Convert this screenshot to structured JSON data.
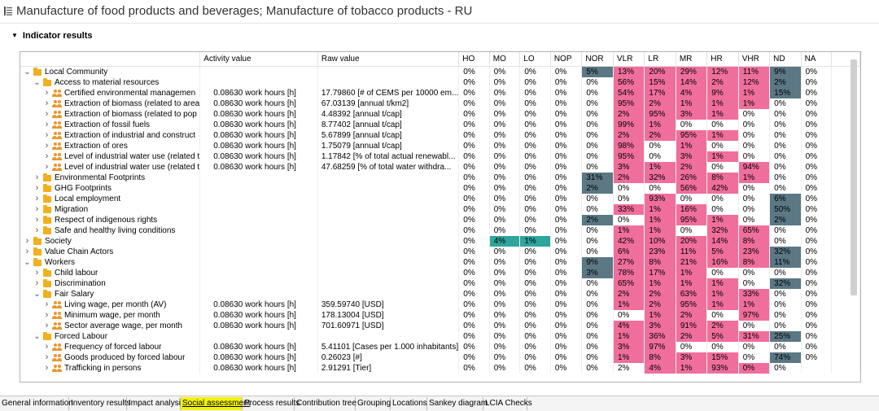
{
  "title": "Manufacture of food products and beverages; Manufacture of tobacco products - RU",
  "section": "Indicator results",
  "columns": [
    "",
    "Activity value",
    "Raw value",
    "HO",
    "MO",
    "LO",
    "NOP",
    "NOR",
    "VLR",
    "LR",
    "MR",
    "HR",
    "VHR",
    "ND",
    "NA"
  ],
  "rows": [
    {
      "level": 0,
      "icon": "folder",
      "expanded": true,
      "name": "Local Community",
      "activity": "",
      "raw": "",
      "v": [
        "0%",
        "0%",
        "0%",
        "0%",
        "5%",
        "13%",
        "20%",
        "29%",
        "12%",
        "11%",
        "9%",
        "0%"
      ],
      "hl": [
        "",
        "",
        "",
        "",
        "s",
        "p",
        "p",
        "p",
        "p",
        "p",
        "s",
        ""
      ]
    },
    {
      "level": 1,
      "icon": "folder",
      "expanded": true,
      "name": "Access to material resources",
      "activity": "",
      "raw": "",
      "v": [
        "0%",
        "0%",
        "0%",
        "0%",
        "0%",
        "56%",
        "15%",
        "14%",
        "2%",
        "12%",
        "2%",
        "0%"
      ],
      "hl": [
        "",
        "",
        "",
        "",
        "",
        "p",
        "p",
        "p",
        "p",
        "p",
        "s",
        ""
      ]
    },
    {
      "level": 2,
      "icon": "people",
      "expanded": false,
      "name": "Certified environmental managemen",
      "activity": "0.08630 work hours [h]",
      "raw": "17.79860 [# of CEMS per 10000 em...",
      "v": [
        "0%",
        "0%",
        "0%",
        "0%",
        "0%",
        "54%",
        "17%",
        "4%",
        "9%",
        "1%",
        "15%",
        "0%"
      ],
      "hl": [
        "",
        "",
        "",
        "",
        "",
        "p",
        "p",
        "p",
        "p",
        "p",
        "s",
        ""
      ]
    },
    {
      "level": 2,
      "icon": "people",
      "expanded": false,
      "name": "Extraction of biomass (related to area",
      "activity": "0.08630 work hours [h]",
      "raw": "67.03139 [annual t/km2]",
      "v": [
        "0%",
        "0%",
        "0%",
        "0%",
        "0%",
        "95%",
        "2%",
        "1%",
        "1%",
        "1%",
        "0%",
        "0%"
      ],
      "hl": [
        "",
        "",
        "",
        "",
        "",
        "p",
        "p",
        "p",
        "p",
        "p",
        "",
        ""
      ]
    },
    {
      "level": 2,
      "icon": "people",
      "expanded": false,
      "name": "Extraction of biomass (related to pop",
      "activity": "0.08630 work hours [h]",
      "raw": "4.48392 [annual t/cap]",
      "v": [
        "0%",
        "0%",
        "0%",
        "0%",
        "0%",
        "2%",
        "95%",
        "3%",
        "1%",
        "0%",
        "0%",
        "0%"
      ],
      "hl": [
        "",
        "",
        "",
        "",
        "",
        "p",
        "p",
        "p",
        "p",
        "",
        "",
        ""
      ]
    },
    {
      "level": 2,
      "icon": "people",
      "expanded": false,
      "name": "Extraction of fossil fuels",
      "activity": "0.08630 work hours [h]",
      "raw": "8.77402 [annual t/cap]",
      "v": [
        "0%",
        "0%",
        "0%",
        "0%",
        "0%",
        "99%",
        "1%",
        "0%",
        "0%",
        "0%",
        "0%",
        "0%"
      ],
      "hl": [
        "",
        "",
        "",
        "",
        "",
        "p",
        "p",
        "",
        "",
        "",
        "",
        ""
      ]
    },
    {
      "level": 2,
      "icon": "people",
      "expanded": false,
      "name": "Extraction of industrial and construct",
      "activity": "0.08630 work hours [h]",
      "raw": "5.67899 [annual t/cap]",
      "v": [
        "0%",
        "0%",
        "0%",
        "0%",
        "0%",
        "2%",
        "2%",
        "95%",
        "1%",
        "0%",
        "0%",
        "0%"
      ],
      "hl": [
        "",
        "",
        "",
        "",
        "",
        "p",
        "p",
        "p",
        "p",
        "",
        "",
        ""
      ]
    },
    {
      "level": 2,
      "icon": "people",
      "expanded": false,
      "name": "Extraction of ores",
      "activity": "0.08630 work hours [h]",
      "raw": "1.75079 [annual t/cap]",
      "v": [
        "0%",
        "0%",
        "0%",
        "0%",
        "0%",
        "98%",
        "0%",
        "1%",
        "0%",
        "0%",
        "0%",
        "0%"
      ],
      "hl": [
        "",
        "",
        "",
        "",
        "",
        "p",
        "",
        "p",
        "",
        "",
        "",
        ""
      ]
    },
    {
      "level": 2,
      "icon": "people",
      "expanded": false,
      "name": "Level of industrial water use (related t",
      "activity": "0.08630 work hours [h]",
      "raw": "1.17842 [% of total actual renewabl...",
      "v": [
        "0%",
        "0%",
        "0%",
        "0%",
        "0%",
        "95%",
        "0%",
        "3%",
        "1%",
        "0%",
        "0%",
        "0%"
      ],
      "hl": [
        "",
        "",
        "",
        "",
        "",
        "p",
        "",
        "p",
        "p",
        "",
        "",
        ""
      ]
    },
    {
      "level": 2,
      "icon": "people",
      "expanded": false,
      "name": "Level of industrial water use (related t",
      "activity": "0.08630 work hours [h]",
      "raw": "47.68259 [% of total water withdra...",
      "v": [
        "0%",
        "0%",
        "0%",
        "0%",
        "0%",
        "3%",
        "1%",
        "2%",
        "0%",
        "94%",
        "0%",
        "0%"
      ],
      "hl": [
        "",
        "",
        "",
        "",
        "",
        "p",
        "p",
        "p",
        "",
        "p",
        "",
        ""
      ]
    },
    {
      "level": 1,
      "icon": "folder",
      "expanded": false,
      "name": "Environmental Footprints",
      "activity": "",
      "raw": "",
      "v": [
        "0%",
        "0%",
        "0%",
        "0%",
        "31%",
        "2%",
        "32%",
        "26%",
        "8%",
        "1%",
        "0%",
        "0%"
      ],
      "hl": [
        "",
        "",
        "",
        "",
        "s",
        "p",
        "p",
        "p",
        "p",
        "p",
        "",
        ""
      ]
    },
    {
      "level": 1,
      "icon": "folder",
      "expanded": false,
      "name": "GHG Footprints",
      "activity": "",
      "raw": "",
      "v": [
        "0%",
        "0%",
        "0%",
        "0%",
        "2%",
        "0%",
        "0%",
        "56%",
        "42%",
        "0%",
        "0%",
        "0%"
      ],
      "hl": [
        "",
        "",
        "",
        "",
        "s",
        "",
        "",
        "p",
        "p",
        "",
        "",
        ""
      ]
    },
    {
      "level": 1,
      "icon": "folder",
      "expanded": false,
      "name": "Local employment",
      "activity": "",
      "raw": "",
      "v": [
        "0%",
        "0%",
        "0%",
        "0%",
        "0%",
        "0%",
        "93%",
        "0%",
        "0%",
        "0%",
        "6%",
        "0%"
      ],
      "hl": [
        "",
        "",
        "",
        "",
        "",
        "",
        "p",
        "",
        "",
        "",
        "s",
        ""
      ]
    },
    {
      "level": 1,
      "icon": "folder",
      "expanded": false,
      "name": "Migration",
      "activity": "",
      "raw": "",
      "v": [
        "0%",
        "0%",
        "0%",
        "0%",
        "0%",
        "33%",
        "1%",
        "16%",
        "0%",
        "0%",
        "50%",
        "0%"
      ],
      "hl": [
        "",
        "",
        "",
        "",
        "",
        "p",
        "p",
        "p",
        "",
        "",
        "s",
        ""
      ]
    },
    {
      "level": 1,
      "icon": "folder",
      "expanded": false,
      "name": "Respect of indigenous rights",
      "activity": "",
      "raw": "",
      "v": [
        "0%",
        "0%",
        "0%",
        "0%",
        "2%",
        "0%",
        "1%",
        "95%",
        "1%",
        "0%",
        "2%",
        "0%"
      ],
      "hl": [
        "",
        "",
        "",
        "",
        "s",
        "",
        "p",
        "p",
        "p",
        "",
        "s",
        ""
      ]
    },
    {
      "level": 1,
      "icon": "folder",
      "expanded": false,
      "name": "Safe and healthy living conditions",
      "activity": "",
      "raw": "",
      "v": [
        "0%",
        "0%",
        "0%",
        "0%",
        "0%",
        "1%",
        "1%",
        "0%",
        "32%",
        "65%",
        "0%",
        "0%"
      ],
      "hl": [
        "",
        "",
        "",
        "",
        "",
        "p",
        "p",
        "",
        "p",
        "p",
        "",
        ""
      ]
    },
    {
      "level": 0,
      "icon": "folder",
      "expanded": false,
      "name": "Society",
      "activity": "",
      "raw": "",
      "v": [
        "0%",
        "4%",
        "1%",
        "0%",
        "0%",
        "42%",
        "10%",
        "20%",
        "14%",
        "8%",
        "0%",
        "0%"
      ],
      "hl": [
        "",
        "t",
        "t",
        "",
        "",
        "p",
        "p",
        "p",
        "p",
        "p",
        "",
        ""
      ]
    },
    {
      "level": 0,
      "icon": "folder",
      "expanded": false,
      "name": "Value Chain Actors",
      "activity": "",
      "raw": "",
      "v": [
        "0%",
        "0%",
        "0%",
        "0%",
        "0%",
        "6%",
        "23%",
        "11%",
        "5%",
        "23%",
        "32%",
        "0%"
      ],
      "hl": [
        "",
        "",
        "",
        "",
        "",
        "p",
        "p",
        "p",
        "p",
        "p",
        "s",
        ""
      ]
    },
    {
      "level": 0,
      "icon": "folder",
      "expanded": true,
      "name": "Workers",
      "activity": "",
      "raw": "",
      "v": [
        "0%",
        "0%",
        "0%",
        "0%",
        "9%",
        "27%",
        "8%",
        "21%",
        "16%",
        "8%",
        "11%",
        "0%"
      ],
      "hl": [
        "",
        "",
        "",
        "",
        "s",
        "p",
        "p",
        "p",
        "p",
        "p",
        "s",
        ""
      ]
    },
    {
      "level": 1,
      "icon": "folder",
      "expanded": false,
      "name": "Child labour",
      "activity": "",
      "raw": "",
      "v": [
        "0%",
        "0%",
        "0%",
        "0%",
        "3%",
        "78%",
        "17%",
        "1%",
        "0%",
        "0%",
        "0%",
        "0%"
      ],
      "hl": [
        "",
        "",
        "",
        "",
        "s",
        "p",
        "p",
        "p",
        "",
        "",
        "",
        ""
      ]
    },
    {
      "level": 1,
      "icon": "folder",
      "expanded": false,
      "name": "Discrimination",
      "activity": "",
      "raw": "",
      "v": [
        "0%",
        "0%",
        "0%",
        "0%",
        "0%",
        "65%",
        "1%",
        "1%",
        "1%",
        "0%",
        "32%",
        "0%"
      ],
      "hl": [
        "",
        "",
        "",
        "",
        "",
        "p",
        "p",
        "p",
        "p",
        "",
        "s",
        ""
      ]
    },
    {
      "level": 1,
      "icon": "folder",
      "expanded": true,
      "name": "Fair Salary",
      "activity": "",
      "raw": "",
      "v": [
        "0%",
        "0%",
        "0%",
        "0%",
        "0%",
        "2%",
        "2%",
        "63%",
        "1%",
        "33%",
        "0%",
        "0%"
      ],
      "hl": [
        "",
        "",
        "",
        "",
        "",
        "p",
        "p",
        "p",
        "p",
        "p",
        "",
        ""
      ]
    },
    {
      "level": 2,
      "icon": "people",
      "expanded": false,
      "name": "Living wage, per month (AV)",
      "activity": "0.08630 work hours [h]",
      "raw": "359.59740 [USD]",
      "v": [
        "0%",
        "0%",
        "0%",
        "0%",
        "0%",
        "1%",
        "2%",
        "95%",
        "1%",
        "1%",
        "0%",
        "0%"
      ],
      "hl": [
        "",
        "",
        "",
        "",
        "",
        "p",
        "p",
        "p",
        "p",
        "p",
        "",
        ""
      ]
    },
    {
      "level": 2,
      "icon": "people",
      "expanded": false,
      "name": "Minimum wage, per month",
      "activity": "0.08630 work hours [h]",
      "raw": "178.13004 [USD]",
      "v": [
        "0%",
        "0%",
        "0%",
        "0%",
        "0%",
        "0%",
        "1%",
        "2%",
        "0%",
        "97%",
        "0%",
        "0%"
      ],
      "hl": [
        "",
        "",
        "",
        "",
        "",
        "",
        "p",
        "p",
        "",
        "p",
        "",
        ""
      ]
    },
    {
      "level": 2,
      "icon": "people",
      "expanded": false,
      "name": "Sector average wage, per month",
      "activity": "0.08630 work hours [h]",
      "raw": "701.60971 [USD]",
      "v": [
        "0%",
        "0%",
        "0%",
        "0%",
        "0%",
        "4%",
        "3%",
        "91%",
        "2%",
        "0%",
        "0%",
        "0%"
      ],
      "hl": [
        "",
        "",
        "",
        "",
        "",
        "p",
        "p",
        "p",
        "p",
        "",
        "",
        ""
      ]
    },
    {
      "level": 1,
      "icon": "folder",
      "expanded": true,
      "name": "Forced Labour",
      "activity": "",
      "raw": "",
      "v": [
        "0%",
        "0%",
        "0%",
        "0%",
        "0%",
        "1%",
        "36%",
        "2%",
        "5%",
        "31%",
        "25%",
        "0%"
      ],
      "hl": [
        "",
        "",
        "",
        "",
        "",
        "p",
        "p",
        "p",
        "p",
        "p",
        "s",
        ""
      ]
    },
    {
      "level": 2,
      "icon": "people",
      "expanded": false,
      "name": "Frequency of forced labour",
      "activity": "0.08630 work hours [h]",
      "raw": "5.41101 [Cases per 1.000 inhabitants]",
      "v": [
        "0%",
        "0%",
        "0%",
        "0%",
        "0%",
        "3%",
        "97%",
        "0%",
        "0%",
        "0%",
        "0%",
        "0%"
      ],
      "hl": [
        "",
        "",
        "",
        "",
        "",
        "p",
        "p",
        "",
        "",
        "",
        "",
        ""
      ]
    },
    {
      "level": 2,
      "icon": "people",
      "expanded": false,
      "name": "Goods produced by forced labour",
      "activity": "0.08630 work hours [h]",
      "raw": "0.26023 [#]",
      "v": [
        "0%",
        "0%",
        "0%",
        "0%",
        "0%",
        "1%",
        "8%",
        "3%",
        "15%",
        "0%",
        "74%",
        "0%"
      ],
      "hl": [
        "",
        "",
        "",
        "",
        "",
        "p",
        "p",
        "p",
        "p",
        "",
        "s",
        ""
      ]
    },
    {
      "level": 2,
      "icon": "people",
      "expanded": false,
      "name": "Trafficking in persons",
      "activity": "0.08630 work hours [h]",
      "raw": "2.91291 [Tier]",
      "v": [
        "0%",
        "0%",
        "0%",
        "0%",
        "0%",
        "2%",
        "4%",
        "1%",
        "93%",
        "0%",
        "0%",
        ""
      ],
      "hl": [
        "",
        "",
        "",
        "",
        "",
        "",
        "p",
        "p",
        "p",
        "p",
        "",
        ""
      ]
    }
  ],
  "tabs": [
    "General information",
    "Inventory results",
    "Impact analysis",
    "Social assessment",
    "Process results",
    "Contribution tree",
    "Grouping",
    "Locations",
    "Sankey diagram",
    "LCIA Checks"
  ],
  "active_tab": "Social assessment",
  "colors": {
    "pink": "#f06e9b",
    "slate": "#5b7884",
    "teal": "#2fa59e",
    "tab_highlight": "#f3f30a",
    "folder": "#f2b01e"
  }
}
